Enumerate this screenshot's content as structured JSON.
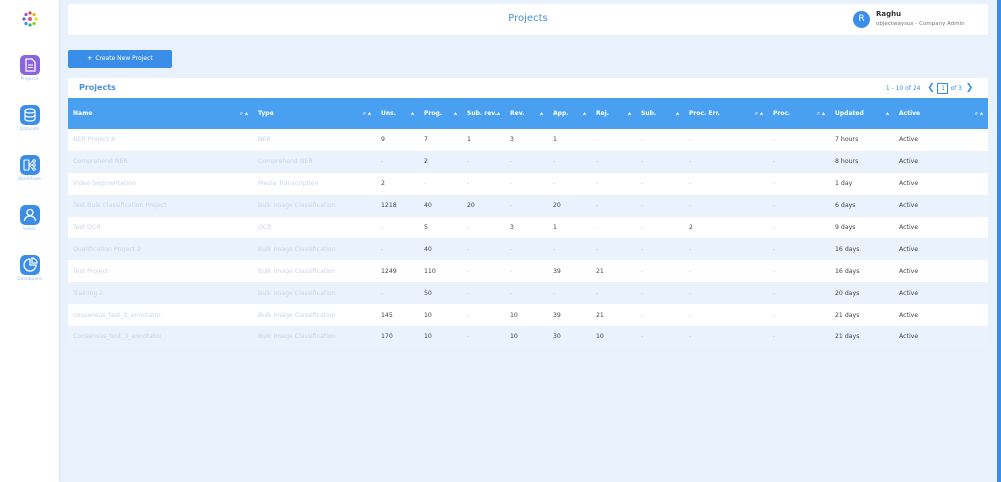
{
  "header": {
    "title": "Projects",
    "user": {
      "initial": "R",
      "name": "Raghu",
      "role": "objectwaysux - Company Admin"
    }
  },
  "sidebar": {
    "items": [
      {
        "label": "Projects",
        "icon": "document-icon"
      },
      {
        "label": "Datasets",
        "icon": "database-icon"
      },
      {
        "label": "Workflows",
        "icon": "workflow-icon"
      },
      {
        "label": "Users",
        "icon": "user-icon"
      },
      {
        "label": "Dashboard",
        "icon": "pie-chart-icon"
      }
    ]
  },
  "toolbar": {
    "create_label": "Create New Project"
  },
  "panel": {
    "title": "Projects",
    "pagination": {
      "range": "1 - 10 of 24",
      "current_page": "1",
      "total": "of 3"
    }
  },
  "table": {
    "columns": [
      "Name",
      "Type",
      "Uns.",
      "Prog.",
      "Sub. rev.",
      "Rev.",
      "App.",
      "Rej.",
      "Sub.",
      "Proc. Err.",
      "Proc.",
      "Updated",
      "Active"
    ],
    "rows": [
      [
        "NER Project A",
        "NER",
        "9",
        "7",
        "1",
        "3",
        "1",
        "-",
        "-",
        "-",
        "-",
        "7 hours",
        "Active"
      ],
      [
        "Comprehend NER",
        "Comprehend NER",
        "-",
        "2",
        "-",
        "-",
        "-",
        "-",
        "-",
        "-",
        "-",
        "8 hours",
        "Active"
      ],
      [
        "Video Segmentation",
        "Media Transcription",
        "2",
        "-",
        "-",
        "-",
        "-",
        "-",
        "-",
        "-",
        "-",
        "1 day",
        "Active"
      ],
      [
        "Test Bulk Classification Project",
        "Bulk Image Classification",
        "1218",
        "40",
        "20",
        "-",
        "20",
        "-",
        "-",
        "-",
        "-",
        "6 days",
        "Active"
      ],
      [
        "Test OCR",
        "OCR",
        "-",
        "5",
        "-",
        "3",
        "1",
        "-",
        "-",
        "2",
        "-",
        "9 days",
        "Active"
      ],
      [
        "Qualification Project 2",
        "Bulk Image Classification",
        "-",
        "40",
        "-",
        "-",
        "-",
        "-",
        "-",
        "-",
        "-",
        "16 days",
        "Active"
      ],
      [
        "Test Project",
        "Bulk Image Classification",
        "1249",
        "110",
        "-",
        "-",
        "39",
        "21",
        "-",
        "-",
        "-",
        "16 days",
        "Active"
      ],
      [
        "Training 2",
        "Bulk Image Classification",
        "-",
        "50",
        "-",
        "-",
        "-",
        "-",
        "-",
        "-",
        "-",
        "20 days",
        "Active"
      ],
      [
        "consensus_test_3_annotator",
        "Bulk Image Classification",
        "145",
        "10",
        "-",
        "10",
        "39",
        "21",
        "-",
        "-",
        "-",
        "21 days",
        "Active"
      ],
      [
        "Consensus_test_3_annotator",
        "Bulk Image Classification",
        "170",
        "10",
        "-",
        "10",
        "30",
        "10",
        "-",
        "-",
        "-",
        "21 days",
        "Active"
      ]
    ]
  }
}
